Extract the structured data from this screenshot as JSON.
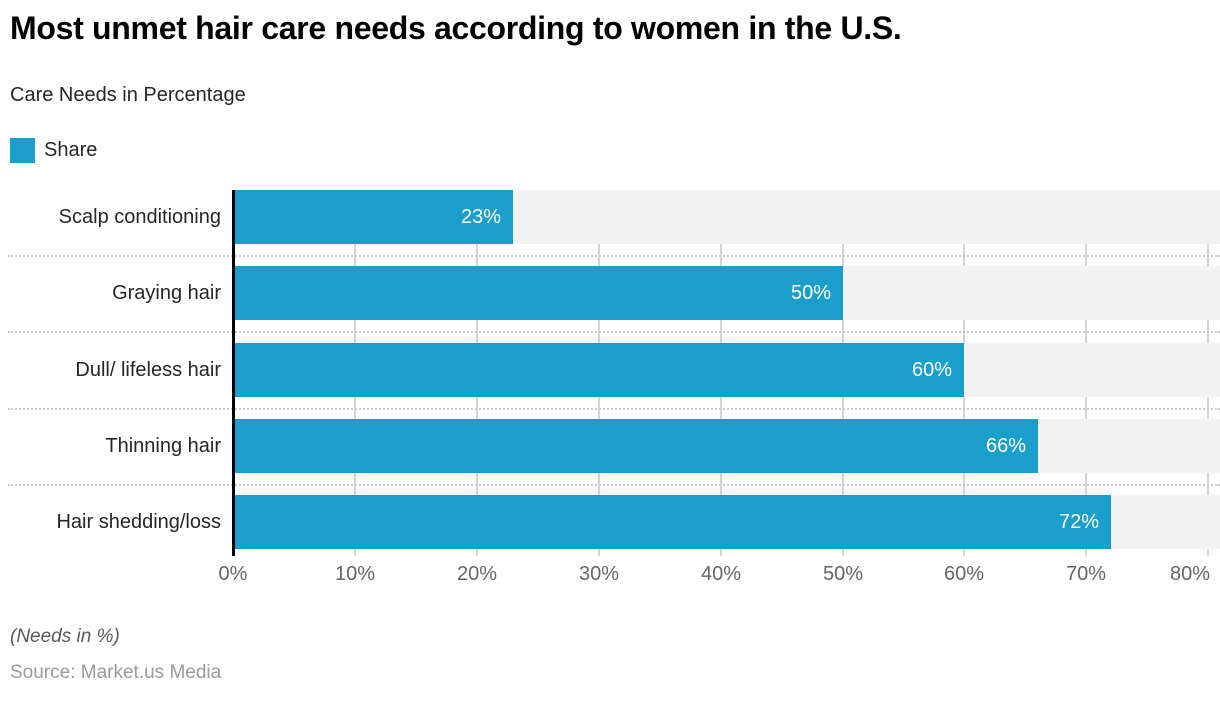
{
  "header": {
    "title": "Most unmet hair care needs according to women in the U.S.",
    "subtitle": "Care Needs in Percentage"
  },
  "legend": {
    "items": [
      {
        "label": "Share",
        "color": "#1A9ECB"
      }
    ]
  },
  "chart_data": {
    "type": "bar",
    "orientation": "horizontal",
    "title": "Most unmet hair care needs according to women in the U.S.",
    "subtitle": "Care Needs in Percentage",
    "categories": [
      "Scalp conditioning",
      "Graying hair",
      "Dull/ lifeless hair",
      "Thinning hair",
      "Hair shedding/loss"
    ],
    "series": [
      {
        "name": "Share",
        "values": [
          23,
          50,
          60,
          66,
          72
        ]
      }
    ],
    "values": [
      23,
      50,
      60,
      66,
      72
    ],
    "value_labels": [
      "23%",
      "50%",
      "60%",
      "66%",
      "72%"
    ],
    "x_ticks": [
      {
        "value": 0,
        "label": "0%"
      },
      {
        "value": 10,
        "label": "10%"
      },
      {
        "value": 20,
        "label": "20%"
      },
      {
        "value": 30,
        "label": "30%"
      },
      {
        "value": 40,
        "label": "40%"
      },
      {
        "value": 50,
        "label": "50%"
      },
      {
        "value": 60,
        "label": "60%"
      },
      {
        "value": 70,
        "label": "70%"
      },
      {
        "value": 80,
        "label": "80%"
      }
    ],
    "xlim": [
      0,
      80
    ],
    "grid": true,
    "legend_position": "top-left",
    "bar_color": "#1A9ECB",
    "track_color": "#F2F2F2",
    "grid_color": "#D4D4D4",
    "axis_color": "#000000"
  },
  "footer": {
    "note": "(Needs in %)",
    "source": "Source: Market.us Media"
  }
}
